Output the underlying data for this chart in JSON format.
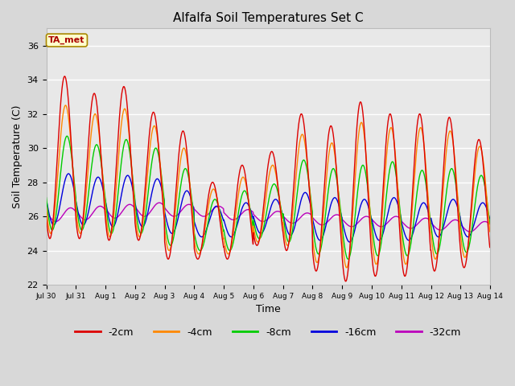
{
  "title": "Alfalfa Soil Temperatures Set C",
  "xlabel": "Time",
  "ylabel": "Soil Temperature (C)",
  "ylim": [
    22,
    37
  ],
  "yticks": [
    22,
    24,
    26,
    28,
    30,
    32,
    34,
    36
  ],
  "fig_facecolor": "#d8d8d8",
  "plot_bg_color": "#e8e8e8",
  "grid_color": "#ffffff",
  "legend_labels": [
    "-2cm",
    "-4cm",
    "-8cm",
    "-16cm",
    "-32cm"
  ],
  "legend_colors": [
    "#dd0000",
    "#ff8800",
    "#00cc00",
    "#0000dd",
    "#bb00bb"
  ],
  "annotation_text": "TA_met",
  "annotation_bg": "#ffffcc",
  "annotation_border": "#aa8800",
  "annotation_text_color": "#aa0000",
  "num_days": 15,
  "xtick_labels": [
    "Jul 30",
    "Jul 31",
    "Aug 1",
    "Aug 2",
    "Aug 3",
    "Aug 4",
    "Aug 5",
    "Aug 6",
    "Aug 7",
    "Aug 8",
    "Aug 9",
    "Aug 10",
    "Aug 11",
    "Aug 12",
    "Aug 13",
    "Aug 14"
  ],
  "num_points_per_day": 96,
  "series_2cm": {
    "amp": [
      9.5,
      8.5,
      9.0,
      7.5,
      7.5,
      4.5,
      5.5,
      5.5,
      8.0,
      8.5,
      10.5,
      9.5,
      9.5,
      9.0,
      7.5,
      5.5
    ],
    "base": [
      24.7,
      24.7,
      24.6,
      24.6,
      23.5,
      23.5,
      23.5,
      24.3,
      24.0,
      22.8,
      22.2,
      22.5,
      22.5,
      22.8,
      23.0,
      24.3
    ],
    "phase": 0.62
  },
  "series_4cm": {
    "amp": [
      7.5,
      7.0,
      7.5,
      6.5,
      6.0,
      3.8,
      4.5,
      4.5,
      6.5,
      7.0,
      8.5,
      8.0,
      8.0,
      7.5,
      6.5,
      5.0
    ],
    "base": [
      25.0,
      25.0,
      24.8,
      24.8,
      24.0,
      23.8,
      23.8,
      24.5,
      24.3,
      23.3,
      23.0,
      23.2,
      23.2,
      23.5,
      23.6,
      24.5
    ],
    "phase": 0.65
  },
  "series_8cm": {
    "amp": [
      5.5,
      5.0,
      5.5,
      5.0,
      4.5,
      3.0,
      3.5,
      3.2,
      4.8,
      5.0,
      5.5,
      5.5,
      5.0,
      5.0,
      4.5,
      3.5
    ],
    "base": [
      25.2,
      25.2,
      25.0,
      25.0,
      24.3,
      24.0,
      24.0,
      24.7,
      24.5,
      23.8,
      23.5,
      23.7,
      23.7,
      23.8,
      23.9,
      24.7
    ],
    "phase": 0.7
  },
  "series_16cm": {
    "amp": [
      3.0,
      2.8,
      3.0,
      2.8,
      2.5,
      1.8,
      2.0,
      2.0,
      2.5,
      2.5,
      2.5,
      2.5,
      2.2,
      2.2,
      2.0,
      1.8
    ],
    "base": [
      25.5,
      25.5,
      25.4,
      25.4,
      25.0,
      24.8,
      24.8,
      25.0,
      24.9,
      24.6,
      24.5,
      24.6,
      24.6,
      24.8,
      24.8,
      25.0
    ],
    "phase": 0.75
  },
  "series_32cm": {
    "amp": [
      0.8,
      0.8,
      0.8,
      0.8,
      0.7,
      0.6,
      0.6,
      0.6,
      0.6,
      0.6,
      0.6,
      0.6,
      0.6,
      0.6,
      0.6,
      0.6
    ],
    "base": [
      25.7,
      25.8,
      25.9,
      26.0,
      26.0,
      26.0,
      25.8,
      25.7,
      25.6,
      25.5,
      25.4,
      25.4,
      25.3,
      25.2,
      25.1,
      25.0
    ],
    "phase": 0.82
  }
}
